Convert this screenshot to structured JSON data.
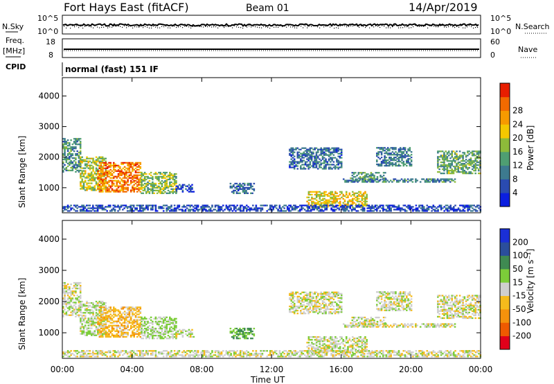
{
  "header": {
    "site": "Fort Hays East (fitACF)",
    "beam": "Beam 01",
    "date": "14/Apr/2019"
  },
  "aux": {
    "nsky_label": "N.Sky",
    "nsearch_label": "N.Search",
    "noise_ticks": [
      "10^5",
      "10^0"
    ],
    "freq_label": "Freq.",
    "freq_unit": "[MHz]",
    "freq_ticks": [
      "18",
      "8"
    ],
    "nave_label": "Nave",
    "nave_ticks": [
      "60",
      "0"
    ],
    "cpid_label": "CPID",
    "cpid_text": "normal (fast) 151 IF"
  },
  "axes": {
    "ylabel": "Slant Range [km]",
    "yticks": [
      1000,
      2000,
      3000,
      4000
    ],
    "ylim": [
      180,
      4600
    ],
    "xlabel": "Time UT",
    "xticks": [
      "00:00",
      "04:00",
      "08:00",
      "12:00",
      "16:00",
      "20:00",
      "00:00"
    ],
    "xlim_hours": [
      0,
      24
    ]
  },
  "power_scale": {
    "title": "Power [dB]",
    "ticks": [
      "4",
      "8",
      "12",
      "16",
      "20",
      "24",
      "28"
    ],
    "colors": [
      "#0b1fe0",
      "#2a4bb0",
      "#3d7a8f",
      "#4f9e72",
      "#8dbb3a",
      "#f4c800",
      "#f79a00",
      "#f26a00",
      "#e81e00"
    ]
  },
  "velocity_scale": {
    "title": "Velocity [m s⁻¹]",
    "ticks": [
      "200",
      "100",
      "50",
      "15",
      "-15",
      "-50",
      "-100",
      "-200"
    ],
    "colors": [
      "#1a2fd6",
      "#2b4e9c",
      "#3f8a52",
      "#7ccd39",
      "#cfcfcf",
      "#f5bb1c",
      "#f5920c",
      "#ef5a00",
      "#e0001a"
    ]
  },
  "chart_data": {
    "type": "heatmap",
    "panels": [
      "Power",
      "Velocity"
    ],
    "x_unit": "hours UT",
    "y_unit": "km",
    "regions": [
      {
        "t0": 0.0,
        "t1": 1.0,
        "r_top": 2600,
        "r_bot": 1500,
        "power": 11,
        "velocity": 0
      },
      {
        "t0": 1.0,
        "t1": 2.5,
        "r_top": 2000,
        "r_bot": 900,
        "power": 17,
        "velocity": 10
      },
      {
        "t0": 2.0,
        "t1": 4.5,
        "r_top": 1800,
        "r_bot": 850,
        "power": 25,
        "velocity": -35
      },
      {
        "t0": 4.5,
        "t1": 6.5,
        "r_top": 1500,
        "r_bot": 800,
        "power": 15,
        "velocity": 20
      },
      {
        "t0": 6.5,
        "t1": 7.5,
        "r_top": 1100,
        "r_bot": 850,
        "power": 6,
        "velocity": 0
      },
      {
        "t0": 9.6,
        "t1": 11.0,
        "r_top": 1150,
        "r_bot": 800,
        "power": 8,
        "velocity": 45
      },
      {
        "t0": 13.0,
        "t1": 16.0,
        "r_top": 2300,
        "r_bot": 1600,
        "power": 8,
        "velocity": 0
      },
      {
        "t0": 14.0,
        "t1": 17.5,
        "r_top": 850,
        "r_bot": 350,
        "power": 19,
        "velocity": 5
      },
      {
        "t0": 16.5,
        "t1": 18.5,
        "r_top": 1500,
        "r_bot": 1200,
        "power": 12,
        "velocity": 0
      },
      {
        "t0": 16.0,
        "t1": 22.5,
        "r_top": 1280,
        "r_bot": 1170,
        "power": 10,
        "velocity": 0
      },
      {
        "t0": 18.0,
        "t1": 20.0,
        "r_top": 2300,
        "r_bot": 1700,
        "power": 9,
        "velocity": 0
      },
      {
        "t0": 21.5,
        "t1": 24.0,
        "r_top": 2200,
        "r_bot": 1450,
        "power": 13,
        "velocity": 0
      },
      {
        "t0": 0.0,
        "t1": 24.0,
        "r_top": 420,
        "r_bot": 220,
        "power": 5,
        "velocity": 0
      }
    ]
  }
}
